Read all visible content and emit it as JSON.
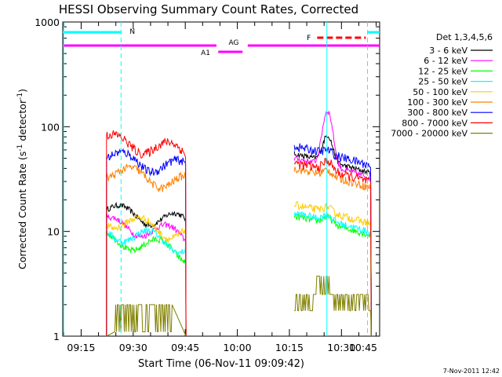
{
  "chart_data": {
    "type": "line",
    "title": "HESSI Observing Summary Count Rates, Corrected",
    "xlabel": "Start Time (06-Nov-11 09:09:42)",
    "ylabel_main": "Corrected Count Rate (s",
    "ylabel_sup1": "-1",
    "ylabel_mid": " detector",
    "ylabel_sup2": "-1",
    "ylabel_end": ")",
    "y_scale": "log",
    "ylim": [
      1,
      1000
    ],
    "xlim_minutes": [
      9.7,
      101.0
    ],
    "y_ticks": [
      {
        "v": 1,
        "label": "1"
      },
      {
        "v": 10,
        "label": "10"
      },
      {
        "v": 100,
        "label": "100"
      },
      {
        "v": 1000,
        "label": "1000"
      }
    ],
    "x_ticks": [
      {
        "m": 15,
        "label": "09:15"
      },
      {
        "m": 30,
        "label": "09:30"
      },
      {
        "m": 45,
        "label": "09:45"
      },
      {
        "m": 60,
        "label": "10:00"
      },
      {
        "m": 75,
        "label": "10:15"
      },
      {
        "m": 90,
        "label": "10:30"
      },
      {
        "m": 105,
        "label": "10:45"
      }
    ],
    "legend_title": "Det 1,3,4,5,6",
    "legend_placement": "right",
    "data_intervals_minutes": [
      [
        22.3,
        45.2
      ],
      [
        76.4,
        98.6
      ]
    ],
    "series": [
      {
        "name": "3 - 6 keV",
        "color": "#000000",
        "start_value": 16,
        "segment2_value": 55,
        "peak": 95
      },
      {
        "name": "6 - 12 keV",
        "color": "#ff00ff",
        "start_value": 12,
        "segment2_value": 50,
        "peak": 160
      },
      {
        "name": "12 - 25 keV",
        "color": "#00ff00",
        "start_value": 8.5,
        "segment2_value": 14,
        "peak": 16
      },
      {
        "name": "25 - 50 keV",
        "color": "#00ffff",
        "start_value": 10,
        "segment2_value": 15,
        "peak": 17
      },
      {
        "name": "50 - 100 keV",
        "color": "#ffcc00",
        "start_value": 13,
        "segment2_value": 18,
        "peak": 20
      },
      {
        "name": "100 - 300 keV",
        "color": "#ff8000",
        "start_value": 38,
        "segment2_value": 40,
        "peak": 45
      },
      {
        "name": "300 - 800 keV",
        "color": "#0000ff",
        "start_value": 52,
        "segment2_value": 65,
        "peak": 70
      },
      {
        "name": "800 - 7000 keV",
        "color": "#ff0000",
        "start_value": 75,
        "segment2_value": 45,
        "peak": 55
      },
      {
        "name": "7000 - 20000 keV",
        "color": "#808000",
        "start_value": 2,
        "segment2_value": 2.5,
        "peak": 3.8
      }
    ],
    "flags": [
      {
        "label": "N",
        "color": "#00ffff"
      },
      {
        "label": "AG",
        "color": "#ff00ff"
      },
      {
        "label": "A1",
        "color": "#ff00ff"
      },
      {
        "label": "F",
        "color": "#ff0000"
      }
    ],
    "footer_date": "7-Nov-2011 12:42"
  }
}
